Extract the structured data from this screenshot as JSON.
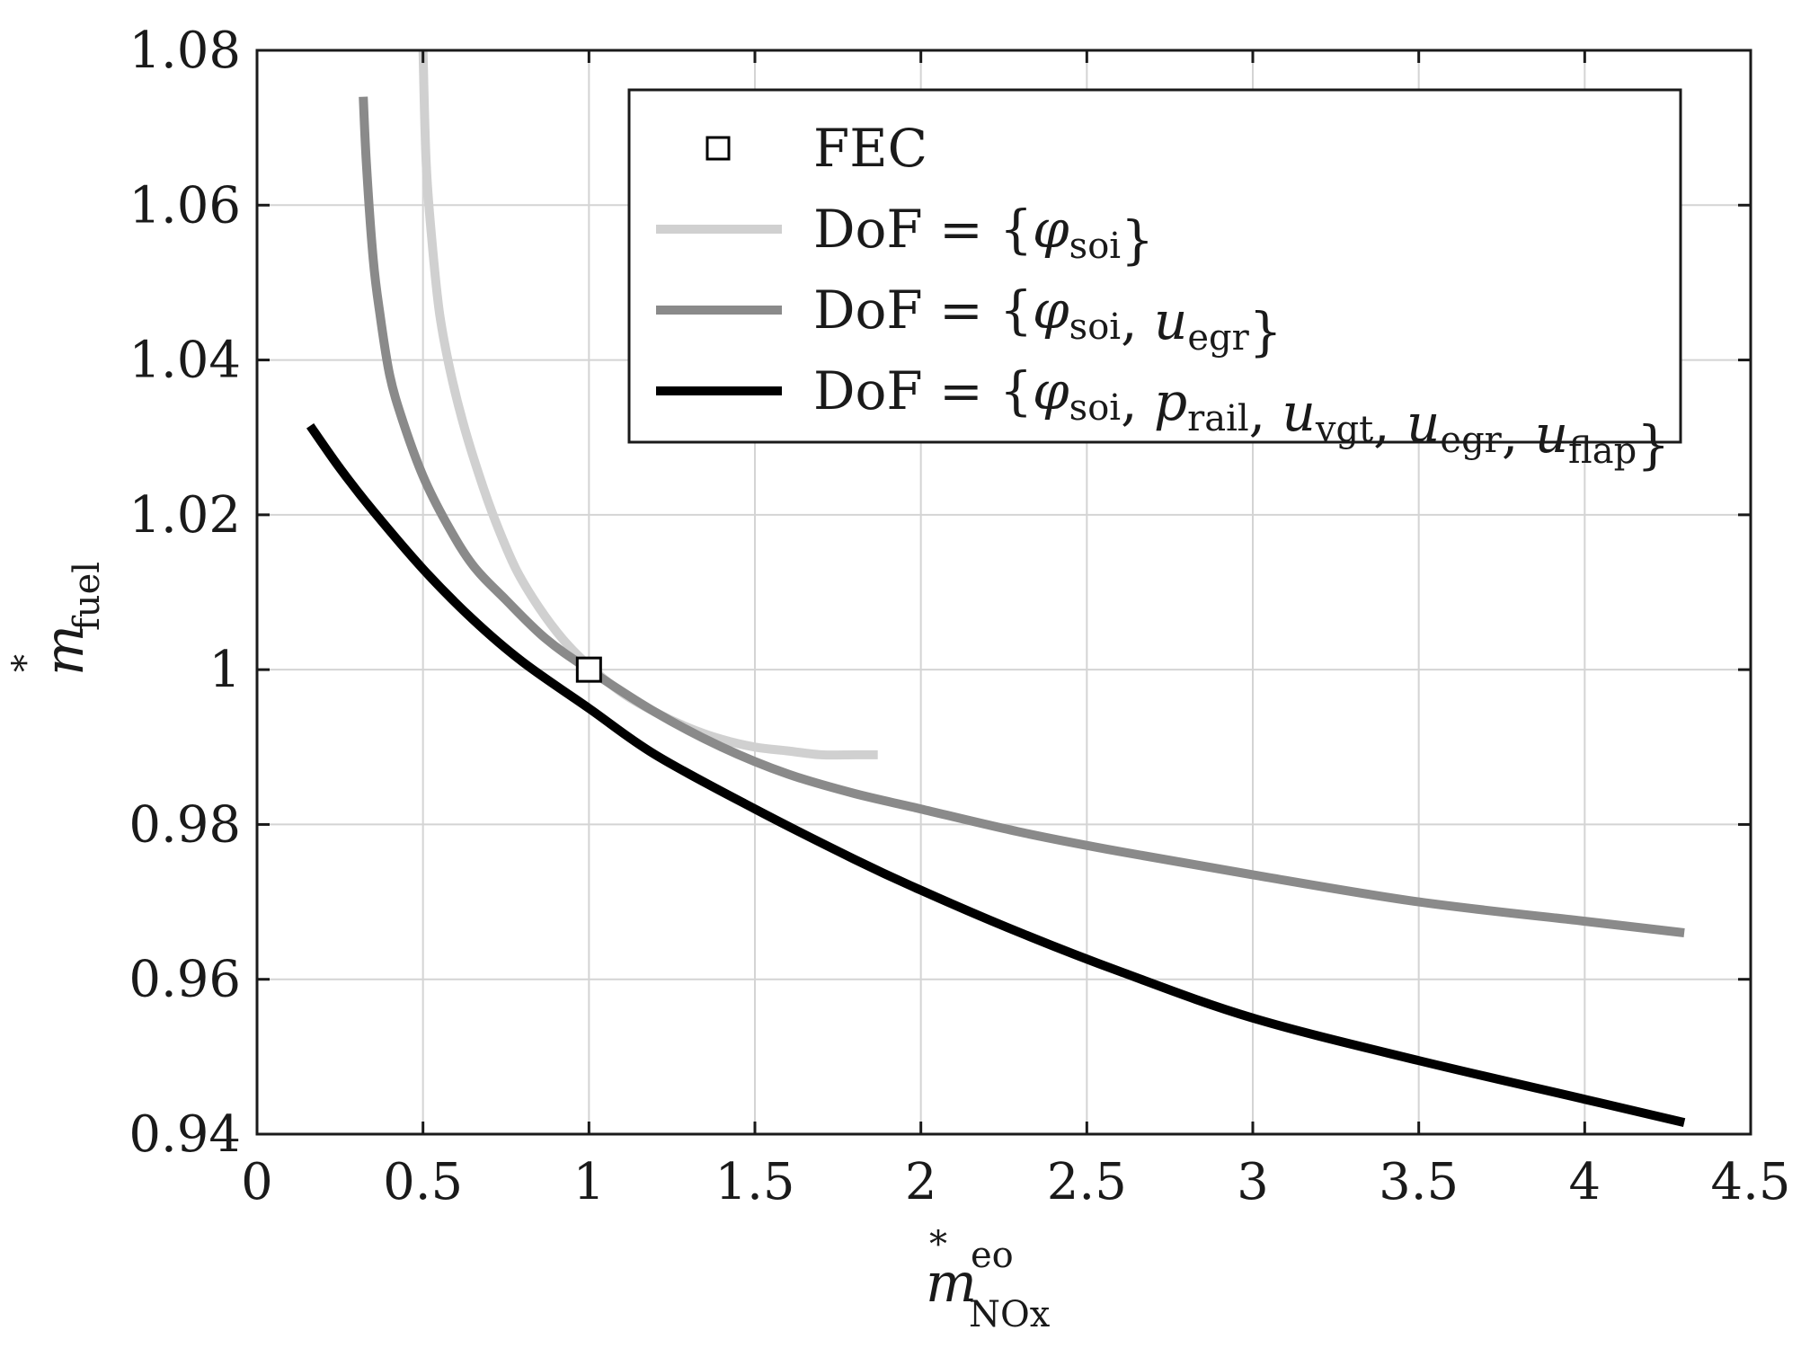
{
  "chart_data": {
    "type": "line",
    "title": "",
    "xlabel": {
      "main": "m",
      "accent": "*",
      "sup": "eo",
      "sub": "NOx"
    },
    "ylabel": {
      "main": "m",
      "accent": "*",
      "sub": "fuel"
    },
    "xlim": [
      0,
      4.5
    ],
    "ylim": [
      0.94,
      1.08
    ],
    "xticks": [
      0,
      0.5,
      1,
      1.5,
      2,
      2.5,
      3,
      3.5,
      4,
      4.5
    ],
    "xtick_labels": [
      "0",
      "0.5",
      "1",
      "1.5",
      "2",
      "2.5",
      "3",
      "3.5",
      "4",
      "4.5"
    ],
    "yticks": [
      0.94,
      0.96,
      0.98,
      1.0,
      1.02,
      1.04,
      1.06,
      1.08
    ],
    "ytick_labels": [
      "0.94",
      "0.96",
      "0.98",
      "1",
      "1.02",
      "1.04",
      "1.06",
      "1.08"
    ],
    "grid": true,
    "legend_position": "top-right",
    "fec_point": {
      "label": "FEC",
      "x": 1.0,
      "y": 1.0
    },
    "series": [
      {
        "name": "DoF = {φsoi}",
        "legend": {
          "prefix": "DoF = {",
          "items": [
            {
              "sym": "φ",
              "sub": "soi"
            }
          ],
          "suffix": "}"
        },
        "color": "#d0d0d0",
        "x": [
          0.5,
          0.51,
          0.53,
          0.55,
          0.58,
          0.62,
          0.67,
          0.72,
          0.78,
          0.85,
          0.92,
          1.0,
          1.1,
          1.2,
          1.3,
          1.4,
          1.5,
          1.6,
          1.7,
          1.8,
          1.87
        ],
        "y": [
          1.08,
          1.065,
          1.054,
          1.046,
          1.039,
          1.032,
          1.025,
          1.019,
          1.013,
          1.008,
          1.004,
          1.0005,
          0.997,
          0.9945,
          0.9925,
          0.991,
          0.99,
          0.9895,
          0.989,
          0.989,
          0.989
        ]
      },
      {
        "name": "DoF = {φsoi, uegr}",
        "legend": {
          "prefix": "DoF = {",
          "items": [
            {
              "sym": "φ",
              "sub": "soi"
            },
            {
              "sym": "u",
              "sub": "egr"
            }
          ],
          "suffix": "}"
        },
        "color": "#8a8a8a",
        "x": [
          0.32,
          0.33,
          0.35,
          0.37,
          0.4,
          0.44,
          0.5,
          0.57,
          0.65,
          0.75,
          0.87,
          1.0,
          1.2,
          1.4,
          1.6,
          1.8,
          2.0,
          2.3,
          2.6,
          3.0,
          3.5,
          4.0,
          4.3
        ],
        "y": [
          1.074,
          1.065,
          1.053,
          1.046,
          1.038,
          1.032,
          1.025,
          1.019,
          1.0135,
          1.009,
          1.004,
          1.0,
          0.9945,
          0.99,
          0.9865,
          0.984,
          0.982,
          0.979,
          0.9765,
          0.9735,
          0.97,
          0.9675,
          0.966
        ]
      },
      {
        "name": "DoF = {φsoi, prail, uvgt, uegr, uflap}",
        "legend": {
          "prefix": "DoF = {",
          "items": [
            {
              "sym": "φ",
              "sub": "soi"
            },
            {
              "sym": "p",
              "sub": "rail"
            },
            {
              "sym": "u",
              "sub": "vgt"
            },
            {
              "sym": "u",
              "sub": "egr"
            },
            {
              "sym": "u",
              "sub": "flap"
            }
          ],
          "suffix": "}"
        },
        "color": "#000000",
        "x": [
          0.16,
          0.25,
          0.35,
          0.5,
          0.65,
          0.8,
          1.0,
          1.2,
          1.5,
          1.8,
          2.0,
          2.3,
          2.6,
          3.0,
          3.5,
          4.0,
          4.3
        ],
        "y": [
          1.0315,
          1.026,
          1.0205,
          1.013,
          1.0065,
          1.001,
          0.995,
          0.989,
          0.982,
          0.9755,
          0.9715,
          0.966,
          0.961,
          0.955,
          0.9495,
          0.9445,
          0.9415
        ]
      }
    ]
  }
}
